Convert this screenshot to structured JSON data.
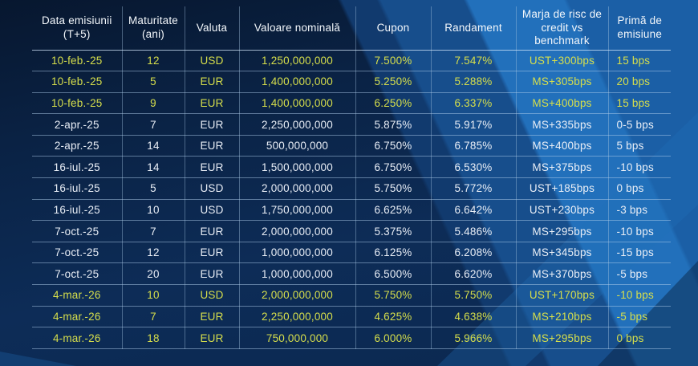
{
  "colors": {
    "background_navy": "#0b2547",
    "stripe_blue": "#2270bb",
    "highlight_text": "#d7df4b",
    "body_text": "#e9eef6",
    "header_text": "#f3f7fb",
    "grid_line": "#a9c4e0"
  },
  "table": {
    "columns": [
      "Data emisiunii (T+5)",
      "Maturitate (ani)",
      "Valuta",
      "Valoare nominală",
      "Cupon",
      "Randament",
      "Marja de risc de credit vs benchmark",
      "Primă de emisiune"
    ],
    "rows": [
      {
        "highlight": true,
        "cells": [
          "10-feb.-25",
          "12",
          "USD",
          "1,250,000,000",
          "7.500%",
          "7.547%",
          "UST+300bps",
          "15 bps"
        ]
      },
      {
        "highlight": true,
        "cells": [
          "10-feb.-25",
          "5",
          "EUR",
          "1,400,000,000",
          "5.250%",
          "5.288%",
          "MS+305bps",
          "20 bps"
        ]
      },
      {
        "highlight": true,
        "cells": [
          "10-feb.-25",
          "9",
          "EUR",
          "1,400,000,000",
          "6.250%",
          "6.337%",
          "MS+400bps",
          "15 bps"
        ]
      },
      {
        "highlight": false,
        "cells": [
          "2-apr.-25",
          "7",
          "EUR",
          "2,250,000,000",
          "5.875%",
          "5.917%",
          "MS+335bps",
          "0-5 bps"
        ]
      },
      {
        "highlight": false,
        "cells": [
          "2-apr.-25",
          "14",
          "EUR",
          "500,000,000",
          "6.750%",
          "6.785%",
          "MS+400bps",
          "5 bps"
        ]
      },
      {
        "highlight": false,
        "cells": [
          "16-iul.-25",
          "14",
          "EUR",
          "1,500,000,000",
          "6.750%",
          "6.530%",
          "MS+375bps",
          "-10 bps"
        ]
      },
      {
        "highlight": false,
        "cells": [
          "16-iul.-25",
          "5",
          "USD",
          "2,000,000,000",
          "5.750%",
          "5.772%",
          "UST+185bps",
          "0 bps"
        ]
      },
      {
        "highlight": false,
        "cells": [
          "16-iul.-25",
          "10",
          "USD",
          "1,750,000,000",
          "6.625%",
          "6.642%",
          "UST+230bps",
          "-3 bps"
        ]
      },
      {
        "highlight": false,
        "cells": [
          "7-oct.-25",
          "7",
          "EUR",
          "2,000,000,000",
          "5.375%",
          "5.486%",
          "MS+295bps",
          "-10 bps"
        ]
      },
      {
        "highlight": false,
        "cells": [
          "7-oct.-25",
          "12",
          "EUR",
          "1,000,000,000",
          "6.125%",
          "6.208%",
          "MS+345bps",
          "-15 bps"
        ]
      },
      {
        "highlight": false,
        "cells": [
          "7-oct.-25",
          "20",
          "EUR",
          "1,000,000,000",
          "6.500%",
          "6.620%",
          "MS+370bps",
          "-5 bps"
        ]
      },
      {
        "highlight": true,
        "cells": [
          "4-mar.-26",
          "10",
          "USD",
          "2,000,000,000",
          "5.750%",
          "5.750%",
          "UST+170bps",
          "-10 bps"
        ]
      },
      {
        "highlight": true,
        "cells": [
          "4-mar.-26",
          "7",
          "EUR",
          "2,250,000,000",
          "4.625%",
          "4.638%",
          "MS+210bps",
          "-5 bps"
        ]
      },
      {
        "highlight": true,
        "cells": [
          "4-mar.-26",
          "18",
          "EUR",
          "750,000,000",
          "6.000%",
          "5.966%",
          "MS+295bps",
          "0 bps"
        ]
      }
    ]
  }
}
